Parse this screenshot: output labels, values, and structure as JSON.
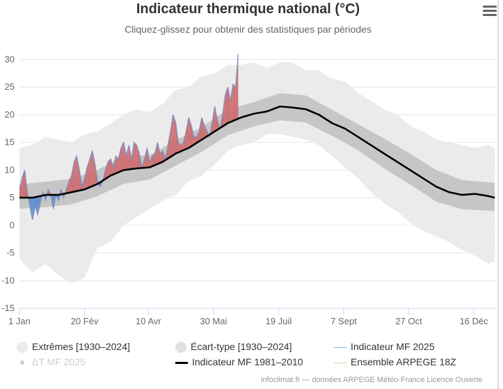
{
  "chart_data": {
    "type": "area",
    "title": "Indicateur thermique national (°C)",
    "subtitle": "Cliquez-glissez pour obtenir des statistiques par périodes",
    "y_ticks": [
      "-15",
      "-10",
      "-5",
      "0",
      "5",
      "10",
      "15",
      "20",
      "25",
      "30"
    ],
    "ylim": [
      -15,
      32
    ],
    "xlim_days": [
      0,
      366
    ],
    "x_ticks": [
      {
        "label": "1 Jan",
        "day": 0
      },
      {
        "label": "20 Fév",
        "day": 50
      },
      {
        "label": "10 Avr",
        "day": 99
      },
      {
        "label": "30 Mai",
        "day": 149
      },
      {
        "label": "19 Juil",
        "day": 199
      },
      {
        "label": "7 Sept",
        "day": 249
      },
      {
        "label": "27 Oct",
        "day": 299
      },
      {
        "label": "16 Déc",
        "day": 349
      }
    ],
    "normal_1981_2010": {
      "days": [
        0,
        10,
        20,
        30,
        40,
        50,
        60,
        70,
        80,
        90,
        100,
        110,
        120,
        130,
        140,
        150,
        160,
        170,
        180,
        190,
        200,
        210,
        220,
        230,
        240,
        250,
        260,
        270,
        280,
        290,
        300,
        310,
        320,
        330,
        340,
        350,
        360,
        365
      ],
      "values": [
        5.0,
        5.0,
        5.5,
        5.5,
        6.0,
        6.5,
        7.5,
        9.0,
        10.0,
        10.3,
        10.5,
        11.5,
        13.0,
        14.0,
        15.5,
        17.0,
        18.5,
        19.5,
        20.2,
        20.6,
        21.5,
        21.3,
        21.0,
        20.0,
        18.5,
        17.5,
        16.0,
        14.5,
        13.0,
        11.5,
        10.0,
        8.5,
        7.0,
        6.0,
        5.5,
        5.7,
        5.3,
        5.0
      ]
    },
    "ecart_type": {
      "days": [
        0,
        20,
        40,
        60,
        80,
        100,
        120,
        140,
        160,
        180,
        200,
        220,
        240,
        260,
        280,
        300,
        320,
        340,
        365
      ],
      "lower": [
        3.0,
        3.3,
        3.8,
        5.3,
        7.5,
        8.3,
        10.8,
        13.3,
        16.3,
        17.9,
        19.0,
        18.6,
        16.2,
        13.6,
        10.3,
        7.4,
        4.3,
        2.9,
        2.6
      ],
      "upper": [
        7.4,
        7.9,
        8.4,
        10.0,
        12.5,
        12.7,
        15.4,
        17.8,
        21.0,
        22.3,
        23.9,
        23.5,
        20.9,
        18.3,
        15.7,
        13.0,
        10.0,
        8.2,
        7.7
      ]
    },
    "extremes_1930_2024": {
      "days": [
        0,
        10,
        20,
        30,
        40,
        50,
        60,
        70,
        80,
        90,
        100,
        110,
        120,
        130,
        140,
        150,
        160,
        170,
        180,
        190,
        200,
        210,
        220,
        230,
        240,
        250,
        260,
        270,
        280,
        290,
        300,
        310,
        320,
        330,
        340,
        350,
        360,
        365
      ],
      "lower": [
        -6.0,
        -8.5,
        -7.0,
        -9.0,
        -10.5,
        -9.5,
        -4.0,
        -3.0,
        0.0,
        1.5,
        3.0,
        4.5,
        5.5,
        8.0,
        9.0,
        11.0,
        13.5,
        14.5,
        15.0,
        16.5,
        16.5,
        16.0,
        15.5,
        14.5,
        12.5,
        10.5,
        8.5,
        6.0,
        4.0,
        2.5,
        0.5,
        -1.0,
        -2.0,
        -3.0,
        -4.5,
        -5.5,
        -7.0,
        -6.5
      ],
      "upper": [
        14.0,
        14.5,
        16.0,
        15.5,
        15.0,
        16.5,
        17.0,
        18.5,
        20.0,
        21.0,
        20.5,
        22.0,
        24.5,
        25.0,
        27.0,
        27.5,
        29.0,
        29.0,
        29.5,
        28.5,
        29.5,
        29.5,
        28.0,
        28.0,
        26.5,
        26.0,
        24.0,
        22.5,
        21.0,
        20.0,
        18.0,
        17.0,
        15.5,
        15.0,
        14.5,
        14.0,
        14.5,
        14.0
      ]
    },
    "indicateur_mf_2025": {
      "days": [
        0,
        2,
        4,
        6,
        8,
        10,
        12,
        14,
        16,
        18,
        20,
        22,
        24,
        26,
        28,
        30,
        32,
        34,
        36,
        38,
        40,
        42,
        44,
        46,
        48,
        50,
        52,
        54,
        56,
        58,
        60,
        62,
        64,
        66,
        68,
        70,
        72,
        74,
        76,
        78,
        80,
        82,
        84,
        86,
        88,
        90,
        92,
        94,
        96,
        98,
        100,
        102,
        104,
        106,
        108,
        110,
        112,
        114,
        116,
        118,
        120,
        122,
        124,
        126,
        128,
        130,
        132,
        134,
        136,
        138,
        140,
        142,
        144,
        146,
        148,
        150,
        152,
        154,
        156,
        158,
        160,
        162,
        164,
        166,
        168
      ],
      "values": [
        6.5,
        8.5,
        10.0,
        6.0,
        3.5,
        1.0,
        3.5,
        2.0,
        4.0,
        6.0,
        4.5,
        6.5,
        5.5,
        3.0,
        5.5,
        4.5,
        6.5,
        5.0,
        6.5,
        8.0,
        9.0,
        11.5,
        12.5,
        10.0,
        7.0,
        8.5,
        10.5,
        12.0,
        13.5,
        11.0,
        8.0,
        7.0,
        8.0,
        10.0,
        11.5,
        12.0,
        10.5,
        12.5,
        12.0,
        14.0,
        15.0,
        12.5,
        14.5,
        12.0,
        15.0,
        14.5,
        13.0,
        10.5,
        12.0,
        14.0,
        11.5,
        12.5,
        13.0,
        15.0,
        13.0,
        13.5,
        12.0,
        14.5,
        17.0,
        20.0,
        18.5,
        15.0,
        14.5,
        15.0,
        17.0,
        19.5,
        18.0,
        16.0,
        16.0,
        17.0,
        19.5,
        18.0,
        17.0,
        16.0,
        18.5,
        21.5,
        19.0,
        17.5,
        20.0,
        23.5,
        25.0,
        22.5,
        25.5,
        25.0,
        31.0
      ]
    }
  },
  "legend": [
    {
      "label": "Extrêmes [1930–2024]",
      "symbol": "circle",
      "color": "#ebebeb",
      "visible": true
    },
    {
      "label": "Écart-type [1930–2024]",
      "symbol": "circle",
      "color": "#e1e1e1",
      "visible": true
    },
    {
      "label": "Indicateur MF 2025",
      "symbol": "line",
      "color": "#7cb5ec",
      "visible": true
    },
    {
      "label": "ΔT MF 2025",
      "symbol": "circle",
      "color": "#cccccc",
      "visible": false
    },
    {
      "label": "Indicateur MF 1981–2010",
      "symbol": "thick-line",
      "color": "#000000",
      "visible": true
    },
    {
      "label": "Ensemble ARPEGE 18Z",
      "symbol": "line",
      "color": "#b5e6a8",
      "visible": true
    }
  ],
  "colors": {
    "extremes": "#ebebeb",
    "ecart_type": "#c6c6c6",
    "normal": "#000000",
    "mf2025": "#7c90c4",
    "warm_anomaly": "#cd6f72",
    "cold_anomaly": "#5f8fd0",
    "grid": "#e6e6e6"
  },
  "credits": "infoclimat.fr — données ARPEGE Météo-France Licence Ouverte"
}
